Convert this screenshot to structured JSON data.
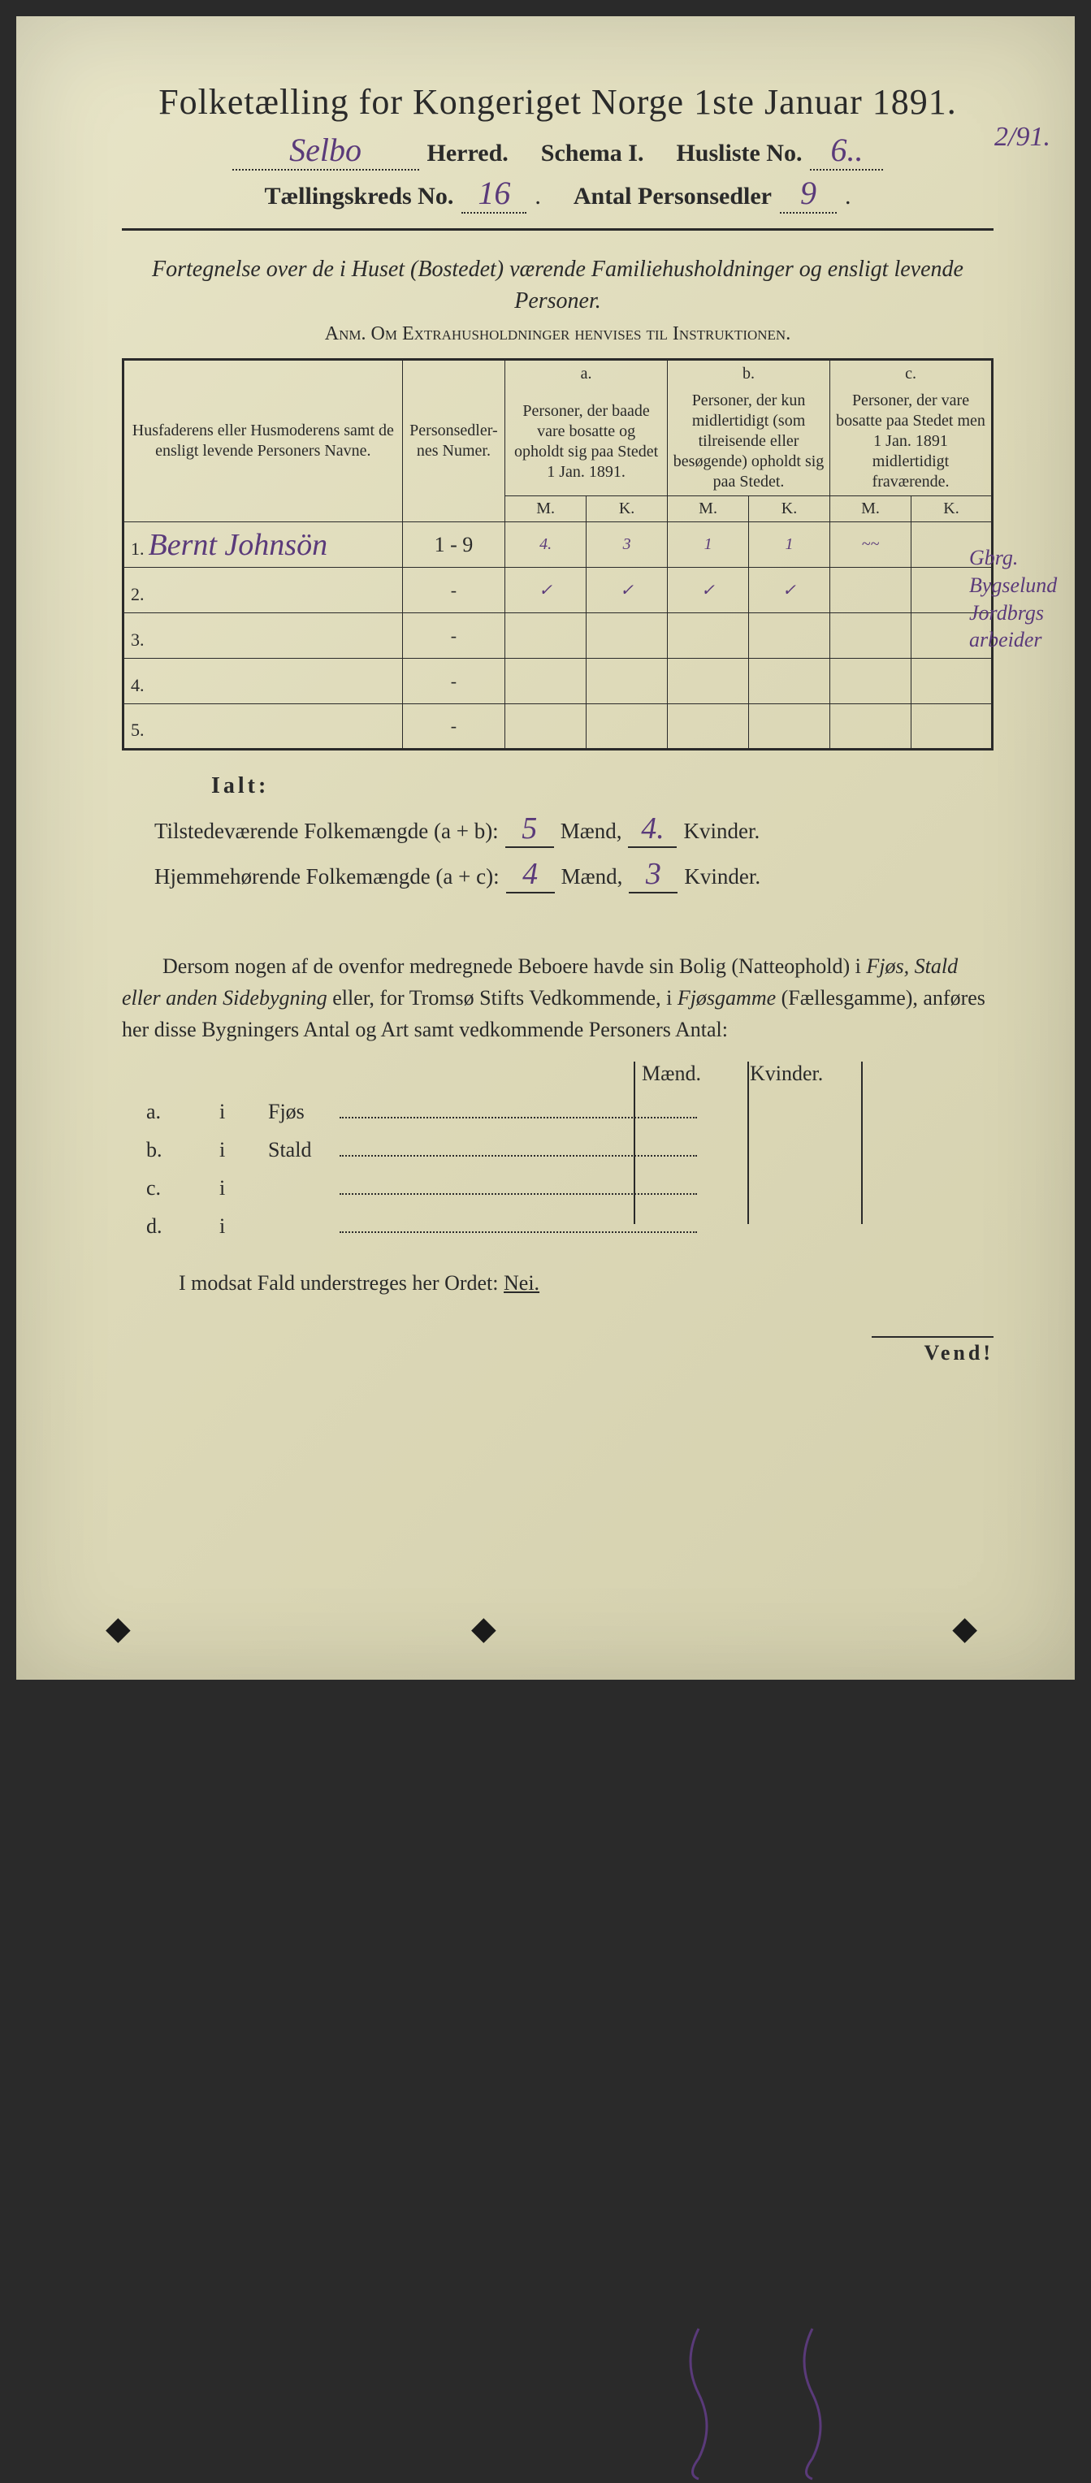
{
  "colors": {
    "paper": "#e0dcbe",
    "ink": "#2a2a2a",
    "handwriting": "#5a3a7a"
  },
  "title": "Folketælling for Kongeriget Norge 1ste Januar 1891.",
  "header": {
    "herred_value": "Selbo",
    "herred_label": "Herred.",
    "schema_label": "Schema I.",
    "husliste_label": "Husliste No.",
    "husliste_value": "6..",
    "kreds_label": "Tællingskreds No.",
    "kreds_value": "16",
    "antal_label": "Antal Personsedler",
    "antal_value": "9",
    "top_margin_note": "2/91."
  },
  "subtitle": "Fortegnelse over de i Huset (Bostedet) værende Familiehusholdninger og ensligt levende Personer.",
  "anm": "Anm. Om Extrahusholdninger henvises til Instruktionen.",
  "table": {
    "head_name": "Husfaderens eller Husmoderens samt de ensligt levende Personers Navne.",
    "head_numer": "Personsedler-nes Numer.",
    "col_a_top": "a.",
    "col_a": "Personer, der baade vare bosatte og opholdt sig paa Stedet 1 Jan. 1891.",
    "col_b_top": "b.",
    "col_b": "Personer, der kun midlertidigt (som tilreisende eller besøgende) opholdt sig paa Stedet.",
    "col_c_top": "c.",
    "col_c": "Personer, der vare bosatte paa Stedet men 1 Jan. 1891 midlertidigt fraværende.",
    "m": "M.",
    "k": "K.",
    "rows": [
      {
        "n": "1.",
        "name": "Bernt Johnsön",
        "numer": "1 - 9",
        "am": "4.",
        "ak": "3",
        "bm": "1",
        "bk": "1",
        "cm": "~~",
        "ck": ""
      },
      {
        "n": "2.",
        "name": "",
        "numer": "-",
        "am": "✓",
        "ak": "✓",
        "bm": "✓",
        "bk": "✓",
        "cm": "",
        "ck": ""
      },
      {
        "n": "3.",
        "name": "",
        "numer": "-",
        "am": "",
        "ak": "",
        "bm": "",
        "bk": "",
        "cm": "",
        "ck": ""
      },
      {
        "n": "4.",
        "name": "",
        "numer": "-",
        "am": "",
        "ak": "",
        "bm": "",
        "bk": "",
        "cm": "",
        "ck": ""
      },
      {
        "n": "5.",
        "name": "",
        "numer": "-",
        "am": "",
        "ak": "",
        "bm": "",
        "bk": "",
        "cm": "",
        "ck": ""
      }
    ],
    "margin_lines": [
      "Gbrg.",
      "Bygselund",
      "Jordbrgs",
      "arbeider"
    ]
  },
  "ialt": "Ialt:",
  "tilstede_label": "Tilstedeværende Folkemængde (a + b):",
  "hjemme_label": "Hjemmehørende Folkemængde (a + c):",
  "maend": "Mænd,",
  "kvinder": "Kvinder.",
  "tilstede_m": "5",
  "tilstede_k": "4.",
  "hjemme_m": "4",
  "hjemme_k": "3",
  "para": "Dersom nogen af de ovenfor medregnede Beboere havde sin Bolig (Natteophold) i Fjøs, Stald eller anden Sidebygning eller, for Tromsø Stifts Vedkommende, i Fjøsgamme (Fællesgamme), anføres her disse Bygningers Antal og Art samt vedkommende Personers Antal:",
  "build": {
    "head_m": "Mænd.",
    "head_k": "Kvinder.",
    "rows": [
      {
        "a": "a.",
        "i": "i",
        "lbl": "Fjøs"
      },
      {
        "a": "b.",
        "i": "i",
        "lbl": "Stald"
      },
      {
        "a": "c.",
        "i": "i",
        "lbl": ""
      },
      {
        "a": "d.",
        "i": "i",
        "lbl": ""
      }
    ]
  },
  "nei_line": "I modsat Fald understreges her Ordet:",
  "nei": "Nei.",
  "vend": "Vend!"
}
